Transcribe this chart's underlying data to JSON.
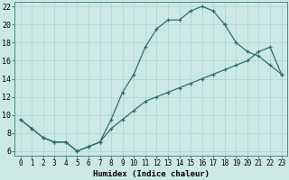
{
  "xlabel": "Humidex (Indice chaleur)",
  "xlim": [
    -0.5,
    23.5
  ],
  "ylim": [
    5.5,
    22.5
  ],
  "xticks": [
    0,
    1,
    2,
    3,
    4,
    5,
    6,
    7,
    8,
    9,
    10,
    11,
    12,
    13,
    14,
    15,
    16,
    17,
    18,
    19,
    20,
    21,
    22,
    23
  ],
  "yticks": [
    6,
    8,
    10,
    12,
    14,
    16,
    18,
    20,
    22
  ],
  "background_color": "#cce8e4",
  "grid_color": "#aad4d0",
  "line_color": "#2d7068",
  "curve1_x": [
    0,
    1,
    2,
    3,
    4,
    5,
    6,
    7,
    8,
    9,
    10,
    11,
    12,
    13,
    14,
    15,
    16,
    17,
    18
  ],
  "curve1_y": [
    9.5,
    8.5,
    7.5,
    7.0,
    7.0,
    6.0,
    6.5,
    7.0,
    9.5,
    12.5,
    14.5,
    17.5,
    19.5,
    20.5,
    20.5,
    21.5,
    22.0,
    21.5,
    20.0
  ],
  "curve2_x": [
    0,
    1,
    2,
    3,
    4,
    5,
    6,
    7,
    8,
    9,
    10,
    11,
    12,
    13,
    14,
    15,
    16,
    17,
    18,
    19,
    20,
    21,
    22,
    23
  ],
  "curve2_y": [
    9.5,
    8.5,
    7.5,
    7.0,
    7.0,
    6.0,
    6.5,
    7.0,
    8.5,
    9.5,
    10.5,
    11.5,
    12.0,
    12.5,
    13.0,
    13.5,
    14.0,
    14.5,
    15.0,
    15.5,
    16.0,
    17.0,
    17.5,
    14.5
  ],
  "curve3_x": [
    18,
    19,
    20,
    21,
    22,
    23
  ],
  "curve3_y": [
    20.0,
    18.0,
    17.0,
    16.5,
    15.5,
    14.5
  ]
}
